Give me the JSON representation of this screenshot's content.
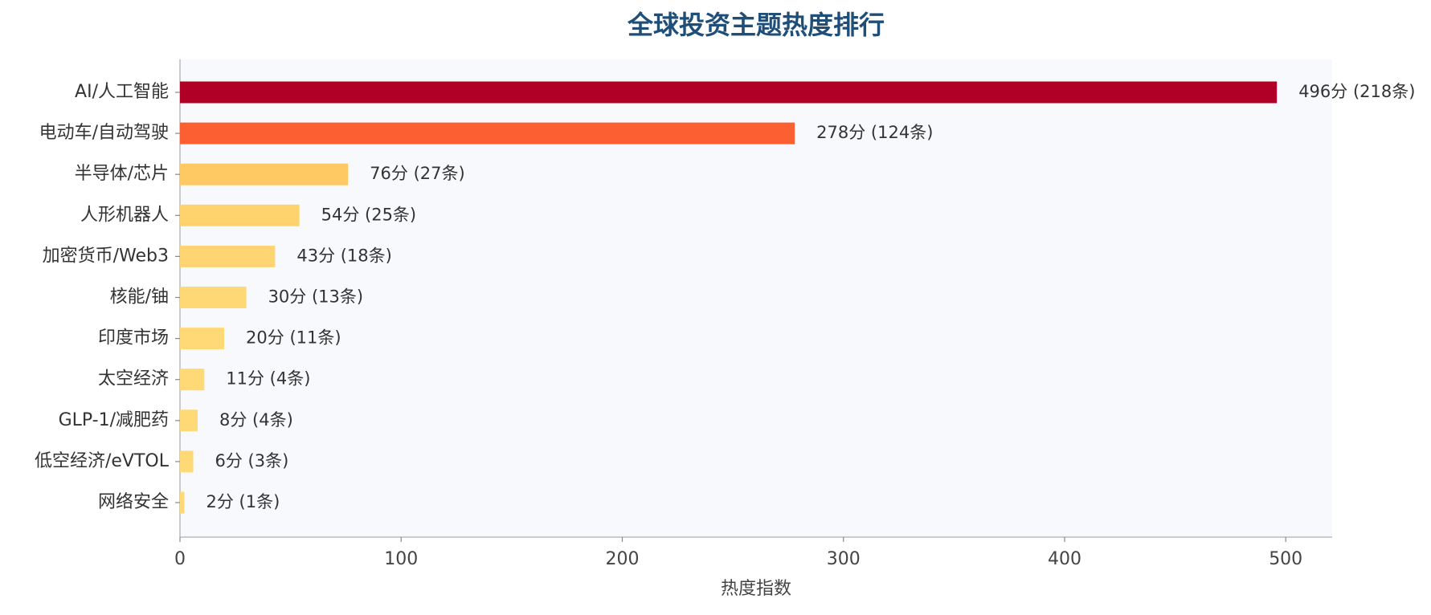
{
  "chart_data": {
    "type": "bar",
    "orientation": "horizontal",
    "title": "全球投资主题热度排行",
    "x_label": "热度指数",
    "categories": [
      "AI/人工智能",
      "电动车/自动驾驶",
      "半导体/芯片",
      "人形机器人",
      "加密货币/Web3",
      "核能/铀",
      "印度市场",
      "太空经济",
      "GLP-1/减肥药",
      "低空经济/eVTOL",
      "网络安全"
    ],
    "values": [
      496,
      278,
      76,
      54,
      43,
      30,
      20,
      11,
      8,
      6,
      2
    ],
    "value_labels": [
      "496分 (218条)",
      "278分 (124条)",
      "76分 (27条)",
      "54分 (25条)",
      "43分 (18条)",
      "30分 (13条)",
      "20分 (11条)",
      "11分 (4条)",
      "8分 (4条)",
      "6分 (3条)",
      "2分 (1条)"
    ],
    "colors": [
      "#b00026",
      "#fc6032",
      "#fec863",
      "#fed36e",
      "#fed572",
      "#fed875",
      "#fed976",
      "#fed976",
      "#fed976",
      "#fed976",
      "#fed976"
    ],
    "xlim": [
      0,
      521
    ],
    "xticks": [
      0,
      100,
      200,
      300,
      400,
      500
    ]
  }
}
